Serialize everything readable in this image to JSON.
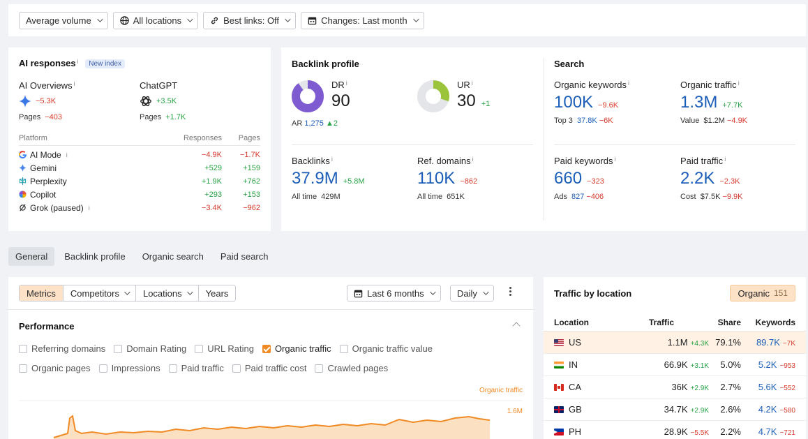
{
  "filters": [
    {
      "label": "Average volume",
      "icon": ""
    },
    {
      "label": "All locations",
      "icon": "globe-icon"
    },
    {
      "label": "Best links: Off",
      "icon": "link-icon"
    },
    {
      "label": "Changes: Last month",
      "icon": "calendar-icon"
    }
  ],
  "ai": {
    "title": "AI responses",
    "badge": "New index",
    "overviews": {
      "label": "AI Overviews",
      "change": "−5.3K",
      "pages_label": "Pages",
      "pages_change": "−403"
    },
    "chatgpt": {
      "label": "ChatGPT",
      "change": "+3.5K",
      "pages_label": "Pages",
      "pages_change": "+1.7K"
    },
    "table_headers": {
      "platform": "Platform",
      "responses": "Responses",
      "pages": "Pages"
    },
    "platforms": [
      {
        "name": "AI Mode",
        "icon": "google-icon",
        "responses": "−4.9K",
        "pages": "−1.7K",
        "info": true
      },
      {
        "name": "Gemini",
        "icon": "gemini-icon",
        "responses": "+529",
        "pages": "+159",
        "info": false
      },
      {
        "name": "Perplexity",
        "icon": "perplexity-icon",
        "responses": "+1.9K",
        "pages": "+762",
        "info": false
      },
      {
        "name": "Copilot",
        "icon": "copilot-icon",
        "responses": "+293",
        "pages": "+153",
        "info": false
      },
      {
        "name": "Grok (paused)",
        "icon": "grok-icon",
        "responses": "−3.4K",
        "pages": "−962",
        "info": true
      }
    ]
  },
  "backlink": {
    "title": "Backlink profile",
    "dr": {
      "label": "DR",
      "value": "90",
      "fill": 0.9
    },
    "ur": {
      "label": "UR",
      "value": "30",
      "change": "+1",
      "fill": 0.3
    },
    "ar": {
      "label": "AR",
      "value": "1,275",
      "change": "▲2"
    },
    "backlinks": {
      "label": "Backlinks",
      "value": "37.9M",
      "change": "+5.8M",
      "sub_label": "All time",
      "sub_value": "429M"
    },
    "refdomains": {
      "label": "Ref. domains",
      "value": "110K",
      "change": "−862",
      "sub_label": "All time",
      "sub_value": "651K"
    }
  },
  "search": {
    "title": "Search",
    "org_kw": {
      "label": "Organic keywords",
      "value": "100K",
      "change": "−9.6K",
      "sub_label": "Top 3",
      "sub_value": "37.8K",
      "sub_change": "−6K"
    },
    "org_traffic": {
      "label": "Organic traffic",
      "value": "1.3M",
      "change": "+7.7K",
      "sub_label": "Value",
      "sub_value": "$1.2M",
      "sub_change": "−4.9K"
    },
    "paid_kw": {
      "label": "Paid keywords",
      "value": "660",
      "change": "−323",
      "sub_label": "Ads",
      "sub_value": "827",
      "sub_change": "−406"
    },
    "paid_traffic": {
      "label": "Paid traffic",
      "value": "2.2K",
      "change": "−2.3K",
      "sub_label": "Cost",
      "sub_value": "$7.5K",
      "sub_change": "−9.9K"
    }
  },
  "tabs": [
    "General",
    "Backlink profile",
    "Organic search",
    "Paid search"
  ],
  "perf": {
    "segments": [
      "Metrics",
      "Competitors",
      "Locations",
      "Years"
    ],
    "range": "Last 6 months",
    "granularity": "Daily",
    "title": "Performance",
    "checks_row1": [
      {
        "label": "Referring domains",
        "on": false
      },
      {
        "label": "Domain Rating",
        "on": false
      },
      {
        "label": "URL Rating",
        "on": false
      },
      {
        "label": "Organic traffic",
        "on": true
      },
      {
        "label": "Organic traffic value",
        "on": false
      }
    ],
    "checks_row2": [
      {
        "label": "Organic pages",
        "on": false
      },
      {
        "label": "Impressions",
        "on": false
      },
      {
        "label": "Paid traffic",
        "on": false
      },
      {
        "label": "Paid traffic cost",
        "on": false
      },
      {
        "label": "Crawled pages",
        "on": false
      }
    ],
    "legend": "Organic traffic",
    "ytick": "1.6M",
    "color": "#f08a24"
  },
  "location": {
    "title": "Traffic by location",
    "badge_label": "Organic",
    "badge_count": "151",
    "headers": {
      "location": "Location",
      "traffic": "Traffic",
      "share": "Share",
      "keywords": "Keywords"
    },
    "rows": [
      {
        "code": "US",
        "traffic": "1.1M",
        "traffic_change": "+4.3K",
        "share": "79.1%",
        "keywords": "89.7K",
        "kw_change": "−7K"
      },
      {
        "code": "IN",
        "traffic": "66.9K",
        "traffic_change": "+3.1K",
        "share": "5.0%",
        "keywords": "5.2K",
        "kw_change": "−953"
      },
      {
        "code": "CA",
        "traffic": "36K",
        "traffic_change": "+2.9K",
        "share": "2.7%",
        "keywords": "5.6K",
        "kw_change": "−552"
      },
      {
        "code": "GB",
        "traffic": "34.7K",
        "traffic_change": "+2.9K",
        "share": "2.6%",
        "keywords": "4.2K",
        "kw_change": "−580"
      },
      {
        "code": "PH",
        "traffic": "28.9K",
        "traffic_change": "−5.5K",
        "share": "2.2%",
        "keywords": "4.7K",
        "kw_change": "−721"
      }
    ]
  }
}
